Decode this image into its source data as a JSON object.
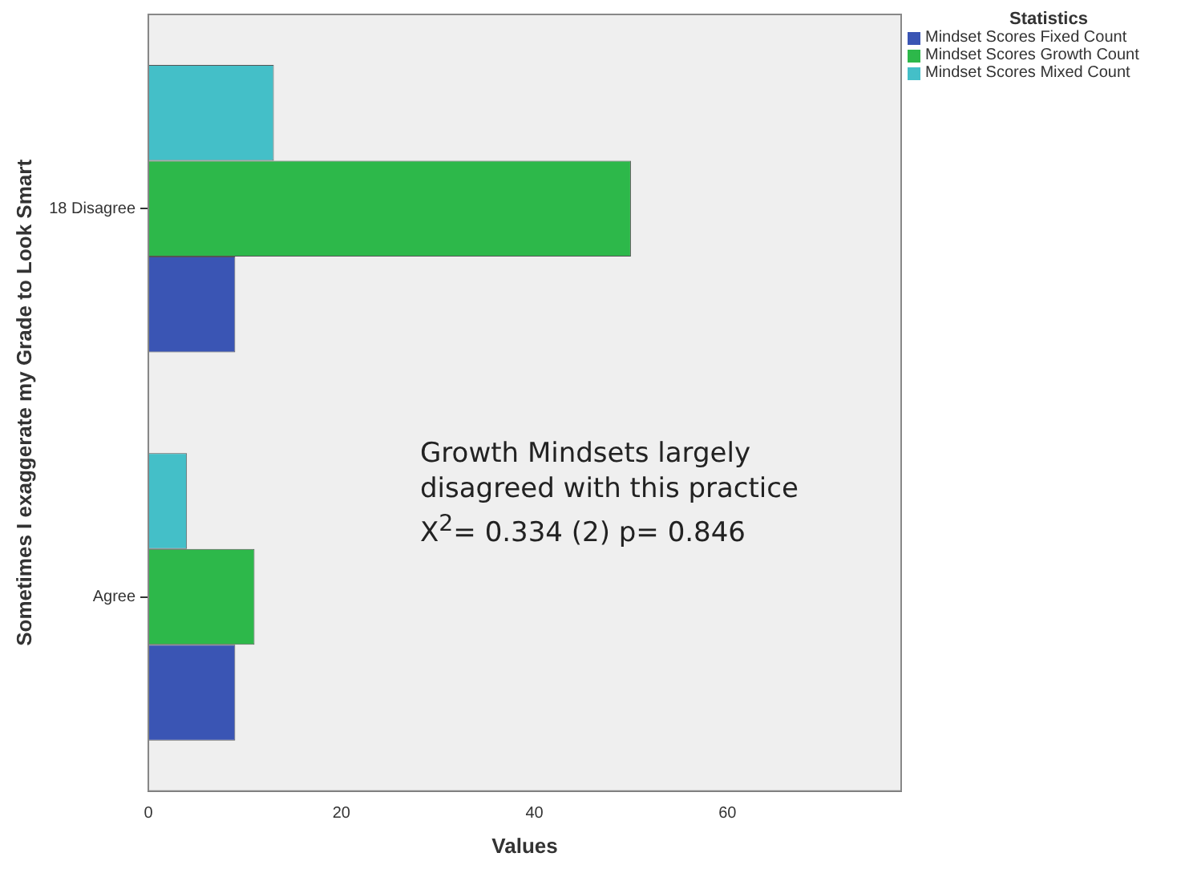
{
  "chart_data": {
    "type": "bar",
    "orientation": "horizontal",
    "xlabel": "Values",
    "ylabel": "Sometimes I exaggerate my Grade to Look Smart",
    "legend_title": "Statistics",
    "legend": "top right",
    "grid": false,
    "categories": [
      "18 Disagree",
      "Agree"
    ],
    "series": [
      {
        "name": "Mindset Scores Fixed Count",
        "color": "#3a55b4",
        "values": [
          9,
          9
        ]
      },
      {
        "name": "Mindset Scores Growth Count",
        "color": "#2db84a",
        "values": [
          50,
          11
        ]
      },
      {
        "name": "Mindset Scores Mixed Count",
        "color": "#44bfc8",
        "values": [
          13,
          4
        ]
      }
    ],
    "xlim": [
      0,
      78
    ],
    "xticks": [
      0,
      20,
      40,
      60
    ],
    "annotations": [
      "Growth Mindsets largely",
      "disagreed with this practice",
      "X$^{2}$= 0.334 (2) p= 0.846"
    ]
  }
}
